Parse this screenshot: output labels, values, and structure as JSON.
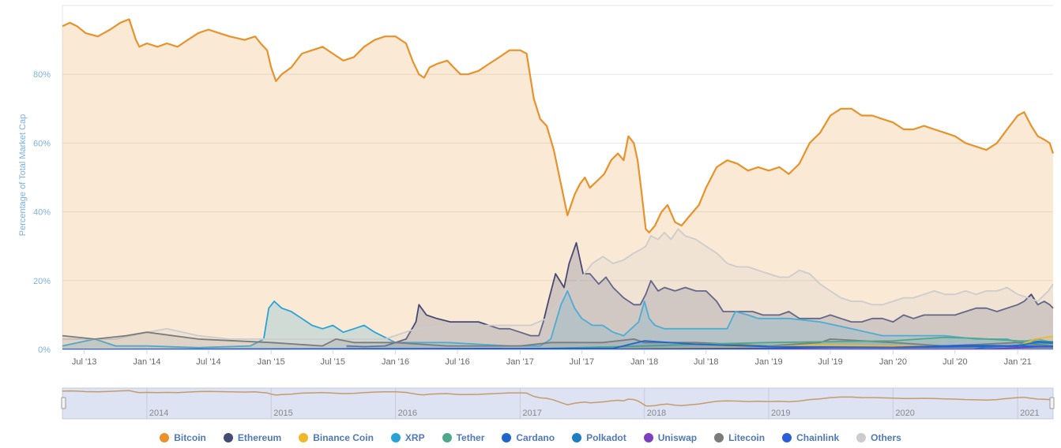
{
  "chart_data": {
    "type": "area",
    "ylabel": "Percentage of Total Market Cap",
    "ylim": [
      0,
      100
    ],
    "y_ticks": [
      "0%",
      "20%",
      "40%",
      "60%",
      "80%"
    ],
    "y_tick_values": [
      0,
      20,
      40,
      60,
      80
    ],
    "x_start": "2013-04-28",
    "x_end": "2021-04-15",
    "x_tick_labels": [
      "Jul '13",
      "Jan '14",
      "Jul '14",
      "Jan '15",
      "Jul '15",
      "Jan '16",
      "Jul '16",
      "Jan '17",
      "Jul '17",
      "Jan '18",
      "Jul '18",
      "Jan '19",
      "Jul '19",
      "Jan '20",
      "Jul '20",
      "Jan '21"
    ],
    "x_tick_dates": [
      "2013-07-01",
      "2014-01-01",
      "2014-07-01",
      "2015-01-01",
      "2015-07-01",
      "2016-01-01",
      "2016-07-01",
      "2017-01-01",
      "2017-07-01",
      "2018-01-01",
      "2018-07-01",
      "2019-01-01",
      "2019-07-01",
      "2020-01-01",
      "2020-07-01",
      "2021-01-01"
    ],
    "navigator_labels": [
      "2014",
      "2015",
      "2016",
      "2017",
      "2018",
      "2019",
      "2020",
      "2021"
    ],
    "navigator_dates": [
      "2014-01-01",
      "2015-01-01",
      "2016-01-01",
      "2017-01-01",
      "2018-01-01",
      "2019-01-01",
      "2020-01-01",
      "2021-01-01"
    ],
    "grid": true,
    "legend_position": "bottom",
    "series": [
      {
        "name": "Bitcoin",
        "color": "#e8922b",
        "x": [
          "2013-04-28",
          "2013-05-20",
          "2013-06-10",
          "2013-07-05",
          "2013-08-10",
          "2013-09-15",
          "2013-10-15",
          "2013-11-10",
          "2013-11-30",
          "2013-12-10",
          "2014-01-01",
          "2014-02-01",
          "2014-03-01",
          "2014-04-01",
          "2014-05-01",
          "2014-06-01",
          "2014-07-01",
          "2014-08-01",
          "2014-09-01",
          "2014-10-15",
          "2014-11-15",
          "2014-12-01",
          "2014-12-20",
          "2015-01-01",
          "2015-01-15",
          "2015-02-01",
          "2015-03-01",
          "2015-04-01",
          "2015-05-01",
          "2015-06-01",
          "2015-07-01",
          "2015-08-01",
          "2015-09-01",
          "2015-10-01",
          "2015-11-01",
          "2015-12-01",
          "2016-01-01",
          "2016-02-01",
          "2016-02-20",
          "2016-03-10",
          "2016-03-25",
          "2016-04-10",
          "2016-05-01",
          "2016-06-01",
          "2016-06-20",
          "2016-07-10",
          "2016-08-01",
          "2016-09-01",
          "2016-10-01",
          "2016-11-01",
          "2016-12-01",
          "2017-01-01",
          "2017-01-20",
          "2017-02-10",
          "2017-03-01",
          "2017-03-20",
          "2017-04-10",
          "2017-05-01",
          "2017-05-20",
          "2017-06-10",
          "2017-06-25",
          "2017-07-10",
          "2017-07-25",
          "2017-08-15",
          "2017-09-05",
          "2017-09-25",
          "2017-10-15",
          "2017-11-01",
          "2017-11-15",
          "2017-12-01",
          "2017-12-12",
          "2017-12-22",
          "2018-01-05",
          "2018-01-15",
          "2018-02-01",
          "2018-02-20",
          "2018-03-10",
          "2018-04-01",
          "2018-04-20",
          "2018-05-15",
          "2018-06-10",
          "2018-07-01",
          "2018-08-01",
          "2018-09-01",
          "2018-10-01",
          "2018-11-01",
          "2018-12-01",
          "2019-01-01",
          "2019-02-01",
          "2019-03-01",
          "2019-04-01",
          "2019-05-01",
          "2019-06-01",
          "2019-07-01",
          "2019-08-01",
          "2019-09-01",
          "2019-10-01",
          "2019-11-01",
          "2019-12-01",
          "2020-01-01",
          "2020-02-01",
          "2020-03-01",
          "2020-04-01",
          "2020-05-01",
          "2020-06-01",
          "2020-07-01",
          "2020-08-01",
          "2020-09-01",
          "2020-10-01",
          "2020-11-01",
          "2020-12-01",
          "2021-01-01",
          "2021-01-20",
          "2021-02-10",
          "2021-03-01",
          "2021-03-20",
          "2021-04-05",
          "2021-04-15"
        ],
        "values": [
          94,
          95,
          94,
          92,
          91,
          93,
          95,
          96,
          90,
          88,
          89,
          88,
          89,
          88,
          90,
          92,
          93,
          92,
          91,
          90,
          91,
          89,
          87,
          82,
          78,
          80,
          82,
          86,
          87,
          88,
          86,
          84,
          85,
          88,
          90,
          91,
          91,
          89,
          84,
          80,
          79,
          82,
          83,
          84,
          82,
          80,
          80,
          81,
          83,
          85,
          87,
          87,
          86,
          73,
          67,
          65,
          58,
          48,
          39,
          45,
          48,
          50,
          47,
          49,
          51,
          55,
          57,
          55,
          62,
          60,
          55,
          47,
          35,
          34,
          36,
          40,
          42,
          37,
          36,
          39,
          42,
          47,
          53,
          55,
          54,
          52,
          53,
          52,
          53,
          51,
          54,
          60,
          63,
          68,
          70,
          70,
          68,
          68,
          67,
          66,
          64,
          64,
          65,
          64,
          63,
          62,
          60,
          59,
          58,
          60,
          64,
          68,
          69,
          65,
          62,
          61,
          60,
          57
        ]
      },
      {
        "name": "Ethereum",
        "color": "#454a75",
        "x": [
          "2015-08-10",
          "2015-10-01",
          "2015-12-01",
          "2016-02-01",
          "2016-03-01",
          "2016-03-10",
          "2016-04-01",
          "2016-05-01",
          "2016-06-10",
          "2016-07-01",
          "2016-08-01",
          "2016-09-01",
          "2016-10-01",
          "2016-11-01",
          "2016-12-01",
          "2017-01-01",
          "2017-02-01",
          "2017-02-25",
          "2017-03-10",
          "2017-03-25",
          "2017-04-15",
          "2017-05-10",
          "2017-05-25",
          "2017-06-15",
          "2017-07-05",
          "2017-07-25",
          "2017-08-20",
          "2017-09-10",
          "2017-10-01",
          "2017-11-01",
          "2017-12-01",
          "2017-12-20",
          "2018-01-05",
          "2018-01-20",
          "2018-02-10",
          "2018-03-01",
          "2018-04-01",
          "2018-05-01",
          "2018-06-01",
          "2018-07-01",
          "2018-08-01",
          "2018-08-20",
          "2018-10-01",
          "2018-11-15",
          "2018-12-15",
          "2019-01-01",
          "2019-02-01",
          "2019-03-01",
          "2019-04-01",
          "2019-05-01",
          "2019-06-01",
          "2019-07-01",
          "2019-08-01",
          "2019-09-01",
          "2019-10-01",
          "2019-11-01",
          "2019-12-01",
          "2020-01-01",
          "2020-02-01",
          "2020-03-01",
          "2020-04-01",
          "2020-05-01",
          "2020-06-01",
          "2020-07-01",
          "2020-08-01",
          "2020-09-01",
          "2020-10-01",
          "2020-11-01",
          "2020-12-01",
          "2021-01-01",
          "2021-01-20",
          "2021-02-10",
          "2021-03-01",
          "2021-03-20",
          "2021-04-05",
          "2021-04-15"
        ],
        "values": [
          1,
          0.8,
          1,
          3,
          8,
          13,
          10,
          9,
          8,
          8,
          8,
          8,
          7,
          6,
          6,
          5,
          4,
          4,
          8,
          14,
          22,
          18,
          25,
          31,
          22,
          22,
          19,
          21,
          18,
          15,
          13,
          13,
          16,
          20,
          17,
          18,
          17,
          18,
          17,
          17,
          14,
          11,
          11,
          11,
          10,
          10,
          10,
          11,
          9,
          9,
          9,
          10,
          9,
          8,
          8,
          9,
          9,
          8,
          10,
          9,
          10,
          10,
          10,
          10,
          11,
          12,
          12,
          11,
          12,
          13,
          14,
          16,
          13,
          14,
          13,
          12
        ]
      },
      {
        "name": "XRP",
        "color": "#29a3d6",
        "x": [
          "2013-04-28",
          "2013-08-01",
          "2013-10-01",
          "2014-01-01",
          "2014-06-01",
          "2014-11-01",
          "2014-12-10",
          "2014-12-25",
          "2015-01-10",
          "2015-02-01",
          "2015-03-01",
          "2015-04-01",
          "2015-05-01",
          "2015-06-01",
          "2015-07-01",
          "2015-08-01",
          "2015-09-01",
          "2015-10-01",
          "2015-11-01",
          "2016-01-01",
          "2016-06-01",
          "2016-12-01",
          "2017-03-01",
          "2017-04-01",
          "2017-05-01",
          "2017-05-20",
          "2017-06-10",
          "2017-07-01",
          "2017-08-01",
          "2017-09-01",
          "2017-10-01",
          "2017-11-01",
          "2017-12-15",
          "2018-01-01",
          "2018-01-15",
          "2018-02-01",
          "2018-03-01",
          "2018-05-01",
          "2018-07-01",
          "2018-09-01",
          "2018-09-25",
          "2018-11-01",
          "2018-12-01",
          "2019-03-01",
          "2019-06-01",
          "2019-09-01",
          "2019-12-01",
          "2020-03-01",
          "2020-06-01",
          "2020-09-01",
          "2020-12-01",
          "2021-01-01",
          "2021-03-01",
          "2021-04-15"
        ],
        "values": [
          1,
          3,
          1,
          1,
          0.5,
          1,
          3,
          12,
          14,
          12,
          11,
          9,
          7,
          6,
          7,
          5,
          6,
          7,
          5,
          2,
          2,
          1,
          1,
          3,
          13,
          17,
          12,
          9,
          7,
          7,
          5,
          4,
          8,
          14,
          9,
          7,
          6,
          6,
          6,
          6,
          11,
          10,
          9,
          9,
          8,
          6,
          4,
          4,
          4,
          3,
          3,
          2,
          3,
          2
        ]
      },
      {
        "name": "Others",
        "color": "#cccccc",
        "x": [
          "2013-04-28",
          "2013-08-01",
          "2013-10-01",
          "2014-01-01",
          "2014-03-01",
          "2014-06-01",
          "2014-09-01",
          "2014-12-01",
          "2015-03-01",
          "2015-06-01",
          "2015-09-01",
          "2015-12-01",
          "2016-03-01",
          "2016-06-01",
          "2016-09-01",
          "2016-12-01",
          "2017-02-01",
          "2017-03-20",
          "2017-04-20",
          "2017-05-20",
          "2017-06-10",
          "2017-07-01",
          "2017-08-01",
          "2017-09-01",
          "2017-10-01",
          "2017-11-01",
          "2017-12-01",
          "2017-12-20",
          "2018-01-05",
          "2018-01-20",
          "2018-02-10",
          "2018-03-01",
          "2018-03-20",
          "2018-04-10",
          "2018-05-01",
          "2018-06-01",
          "2018-07-01",
          "2018-08-01",
          "2018-09-01",
          "2018-10-01",
          "2018-11-01",
          "2018-12-01",
          "2019-01-01",
          "2019-02-01",
          "2019-03-01",
          "2019-04-01",
          "2019-05-01",
          "2019-06-01",
          "2019-07-01",
          "2019-08-01",
          "2019-09-01",
          "2019-10-01",
          "2019-11-01",
          "2019-12-01",
          "2020-01-01",
          "2020-02-01",
          "2020-03-01",
          "2020-04-01",
          "2020-05-01",
          "2020-06-01",
          "2020-07-01",
          "2020-08-01",
          "2020-09-01",
          "2020-10-01",
          "2020-11-01",
          "2020-12-01",
          "2021-01-01",
          "2021-02-01",
          "2021-03-01",
          "2021-04-01",
          "2021-04-15"
        ],
        "values": [
          3,
          3,
          3,
          5,
          6,
          4,
          3,
          3,
          3,
          3,
          3,
          3,
          6,
          7,
          7,
          7,
          7,
          9,
          13,
          18,
          19,
          21,
          25,
          27,
          25,
          26,
          28,
          29,
          30,
          33,
          32,
          34,
          32,
          35,
          33,
          32,
          30,
          28,
          25,
          24,
          24,
          23,
          22,
          21,
          21,
          23,
          22,
          19,
          17,
          15,
          14,
          14,
          13,
          13,
          14,
          15,
          15,
          16,
          17,
          16,
          16,
          17,
          16,
          17,
          17,
          18,
          16,
          15,
          14,
          17,
          19
        ]
      },
      {
        "name": "Litecoin",
        "color": "#7b7b7b",
        "x": [
          "2013-04-28",
          "2013-08-01",
          "2013-11-01",
          "2014-01-01",
          "2014-06-01",
          "2015-01-01",
          "2015-06-01",
          "2015-07-10",
          "2015-09-01",
          "2016-01-01",
          "2016-06-01",
          "2017-01-01",
          "2017-04-01",
          "2017-06-01",
          "2017-09-01",
          "2017-12-01",
          "2018-01-01",
          "2018-06-01",
          "2019-01-01",
          "2019-06-01",
          "2019-07-01",
          "2020-01-01",
          "2020-06-01",
          "2021-01-01",
          "2021-04-15"
        ],
        "values": [
          4,
          3,
          4,
          5,
          3,
          2,
          1,
          3,
          2,
          2,
          1,
          1,
          2,
          2,
          2,
          3,
          2,
          2,
          1,
          2,
          3,
          2,
          1,
          2,
          1
        ]
      },
      {
        "name": "Tether",
        "color": "#4fa88c",
        "x": [
          "2013-04-28",
          "2017-01-01",
          "2018-01-01",
          "2018-06-01",
          "2019-01-01",
          "2019-06-01",
          "2020-01-01",
          "2020-06-01",
          "2020-09-01",
          "2021-01-01",
          "2021-04-15"
        ],
        "values": [
          0,
          0.1,
          1,
          1.5,
          2,
          2.2,
          2.5,
          3.5,
          3.2,
          2.5,
          2.3
        ]
      },
      {
        "name": "Binance Coin",
        "color": "#efb82b",
        "x": [
          "2013-04-28",
          "2017-07-01",
          "2018-01-01",
          "2019-01-01",
          "2019-06-01",
          "2020-01-01",
          "2021-01-01",
          "2021-02-20",
          "2021-04-15"
        ],
        "values": [
          0,
          0,
          0.3,
          0.8,
          1.3,
          1,
          0.9,
          3,
          3.8
        ]
      },
      {
        "name": "Cardano",
        "color": "#1e66cc",
        "x": [
          "2013-04-28",
          "2017-10-01",
          "2018-01-01",
          "2018-06-01",
          "2019-01-01",
          "2020-01-01",
          "2021-01-01",
          "2021-03-01",
          "2021-04-15"
        ],
        "values": [
          0,
          0.3,
          2.5,
          1.5,
          0.8,
          0.6,
          0.9,
          2.3,
          2
        ]
      },
      {
        "name": "Polkadot",
        "color": "#1d7ec2",
        "x": [
          "2013-04-28",
          "2020-08-20",
          "2020-10-01",
          "2021-01-01",
          "2021-03-01",
          "2021-04-15"
        ],
        "values": [
          0,
          0,
          0.6,
          1.2,
          2,
          1.8
        ]
      },
      {
        "name": "Uniswap",
        "color": "#7b3fbf",
        "x": [
          "2013-04-28",
          "2020-09-20",
          "2020-12-01",
          "2021-03-01",
          "2021-04-15"
        ],
        "values": [
          0,
          0,
          0.3,
          0.8,
          0.9
        ]
      },
      {
        "name": "Chainlink",
        "color": "#2c5cd6",
        "x": [
          "2013-04-28",
          "2017-10-01",
          "2019-01-01",
          "2019-07-01",
          "2020-01-01",
          "2020-08-01",
          "2021-01-01",
          "2021-04-15"
        ],
        "values": [
          0,
          0.1,
          0.3,
          0.6,
          0.6,
          1.2,
          1,
          0.8
        ]
      }
    ]
  }
}
